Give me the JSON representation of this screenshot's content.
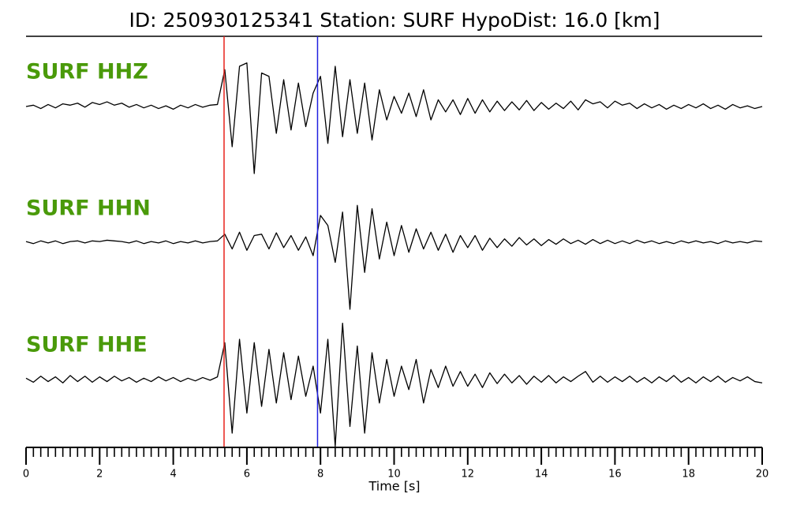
{
  "chart_data": {
    "type": "seismogram",
    "title": "ID: 250930125341   Station: SURF   HypoDist:    16.0 [km]",
    "xlabel": "Time [s]",
    "xlim": [
      0,
      20
    ],
    "xticks": [
      0,
      2,
      4,
      6,
      8,
      10,
      12,
      14,
      16,
      18,
      20
    ],
    "xminor_step": 0.2,
    "label_color": "#4a9a0a",
    "line_color": "#000000",
    "x": [
      0,
      0.2,
      0.4,
      0.6,
      0.8,
      1,
      1.2,
      1.4,
      1.6,
      1.8,
      2,
      2.2,
      2.4,
      2.6,
      2.8,
      3,
      3.2,
      3.4,
      3.6,
      3.8,
      4,
      4.2,
      4.4,
      4.6,
      4.8,
      5,
      5.2,
      5.4,
      5.6,
      5.8,
      6,
      6.2,
      6.4,
      6.6,
      6.8,
      7,
      7.2,
      7.4,
      7.6,
      7.8,
      8,
      8.2,
      8.4,
      8.6,
      8.8,
      9,
      9.2,
      9.4,
      9.6,
      9.8,
      10,
      10.2,
      10.4,
      10.6,
      10.8,
      11,
      11.2,
      11.4,
      11.6,
      11.8,
      12,
      12.2,
      12.4,
      12.6,
      12.8,
      13,
      13.2,
      13.4,
      13.6,
      13.8,
      14,
      14.2,
      14.4,
      14.6,
      14.8,
      15,
      15.2,
      15.4,
      15.6,
      15.8,
      16,
      16.2,
      16.4,
      16.6,
      16.8,
      17,
      17.2,
      17.4,
      17.6,
      17.8,
      18,
      18.2,
      18.4,
      18.6,
      18.8,
      19,
      19.2,
      19.4,
      19.6,
      19.8,
      20
    ],
    "series": [
      {
        "name": "SURF HHZ",
        "ylim": [
          -1,
          1
        ],
        "values": [
          0,
          0.02,
          -0.03,
          0.03,
          -0.02,
          0.04,
          0.02,
          0.05,
          -0.01,
          0.06,
          0.03,
          0.07,
          0.02,
          0.05,
          -0.01,
          0.03,
          -0.02,
          0.02,
          -0.03,
          0.01,
          -0.04,
          0.02,
          -0.02,
          0.03,
          -0.01,
          0.02,
          0.03,
          0.55,
          -0.6,
          0.6,
          0.65,
          -1.0,
          0.5,
          0.45,
          -0.4,
          0.4,
          -0.35,
          0.35,
          -0.3,
          0.2,
          0.45,
          -0.55,
          0.6,
          -0.45,
          0.4,
          -0.4,
          0.35,
          -0.5,
          0.25,
          -0.2,
          0.15,
          -0.1,
          0.2,
          -0.15,
          0.25,
          -0.2,
          0.1,
          -0.08,
          0.1,
          -0.12,
          0.12,
          -0.1,
          0.1,
          -0.08,
          0.08,
          -0.06,
          0.07,
          -0.05,
          0.09,
          -0.06,
          0.06,
          -0.04,
          0.05,
          -0.03,
          0.08,
          -0.05,
          0.1,
          0.04,
          0.07,
          -0.02,
          0.08,
          0.02,
          0.05,
          -0.03,
          0.04,
          -0.02,
          0.03,
          -0.04,
          0.02,
          -0.03,
          0.03,
          -0.02,
          0.04,
          -0.03,
          0.02,
          -0.04,
          0.03,
          -0.02,
          0.01,
          -0.03,
          0
        ]
      },
      {
        "name": "SURF HHN",
        "ylim": [
          -1,
          1
        ],
        "values": [
          0.01,
          -0.02,
          0.02,
          -0.01,
          0.02,
          -0.02,
          0.01,
          0.02,
          -0.01,
          0.02,
          0.01,
          0.03,
          0.02,
          0.01,
          -0.01,
          0.02,
          -0.02,
          0.01,
          -0.01,
          0.02,
          -0.02,
          0.01,
          -0.01,
          0.02,
          -0.01,
          0.01,
          0.02,
          0.12,
          -0.1,
          0.15,
          -0.12,
          0.1,
          0.12,
          -0.1,
          0.14,
          -0.08,
          0.1,
          -0.12,
          0.08,
          -0.2,
          0.4,
          0.25,
          -0.3,
          0.45,
          -1.0,
          0.55,
          -0.45,
          0.5,
          -0.25,
          0.3,
          -0.2,
          0.25,
          -0.15,
          0.2,
          -0.1,
          0.15,
          -0.12,
          0.12,
          -0.15,
          0.1,
          -0.08,
          0.1,
          -0.12,
          0.06,
          -0.08,
          0.05,
          -0.06,
          0.07,
          -0.04,
          0.05,
          -0.05,
          0.04,
          -0.03,
          0.05,
          -0.02,
          0.03,
          -0.03,
          0.04,
          -0.02,
          0.03,
          -0.02,
          0.02,
          -0.02,
          0.03,
          -0.01,
          0.02,
          -0.02,
          0.01,
          -0.02,
          0.02,
          -0.01,
          0.02,
          -0.01,
          0.01,
          -0.02,
          0.02,
          -0.01,
          0.01,
          -0.01,
          0.02,
          0.01
        ]
      },
      {
        "name": "SURF HHE",
        "ylim": [
          -1,
          1
        ],
        "values": [
          0.02,
          -0.04,
          0.05,
          -0.03,
          0.04,
          -0.05,
          0.06,
          -0.03,
          0.05,
          -0.04,
          0.04,
          -0.03,
          0.05,
          -0.02,
          0.03,
          -0.04,
          0.02,
          -0.03,
          0.04,
          -0.02,
          0.03,
          -0.03,
          0.02,
          -0.02,
          0.03,
          -0.01,
          0.04,
          0.55,
          -0.8,
          0.6,
          -0.5,
          0.55,
          -0.4,
          0.45,
          -0.35,
          0.4,
          -0.3,
          0.35,
          -0.25,
          0.2,
          -0.5,
          0.6,
          -1.0,
          0.84,
          -0.7,
          0.5,
          -0.8,
          0.4,
          -0.35,
          0.3,
          -0.25,
          0.2,
          -0.15,
          0.3,
          -0.35,
          0.15,
          -0.12,
          0.2,
          -0.1,
          0.12,
          -0.1,
          0.08,
          -0.12,
          0.1,
          -0.06,
          0.08,
          -0.05,
          0.06,
          -0.07,
          0.05,
          -0.04,
          0.06,
          -0.05,
          0.04,
          -0.03,
          0.05,
          0.12,
          -0.04,
          0.05,
          -0.04,
          0.04,
          -0.03,
          0.05,
          -0.04,
          0.03,
          -0.05,
          0.04,
          -0.03,
          0.06,
          -0.04,
          0.03,
          -0.05,
          0.04,
          -0.03,
          0.05,
          -0.04,
          0.03,
          -0.02,
          0.04,
          -0.03,
          -0.05
        ]
      }
    ],
    "picks": [
      {
        "value": 5.38,
        "color": "#e8221b"
      },
      {
        "value": 7.92,
        "color": "#1f1fe0"
      }
    ]
  }
}
